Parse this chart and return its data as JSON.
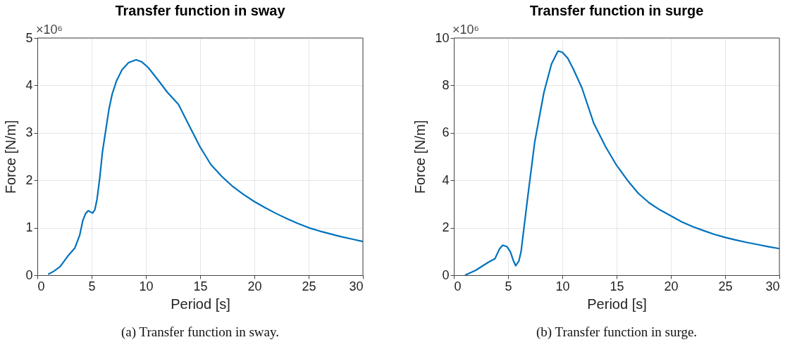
{
  "chart_data": [
    {
      "type": "line",
      "title": "Transfer function in sway",
      "xlabel": "Period [s]",
      "ylabel": "Force [N/m]",
      "xlim": [
        0,
        30
      ],
      "xticks": [
        0,
        5,
        10,
        15,
        20,
        25,
        30
      ],
      "ylim": [
        0,
        5
      ],
      "yticks": [
        0,
        1,
        2,
        3,
        4,
        5
      ],
      "grid": true,
      "annotations": [
        "×10⁶",
        "(a) Transfer function in sway."
      ],
      "series": [
        {
          "color": "#0072bd",
          "x": [
            1,
            1.5,
            2.1,
            2.8,
            3.45,
            3.9,
            4.2,
            4.45,
            4.7,
            4.9,
            5.1,
            5.3,
            5.5,
            5.75,
            6.0,
            6.3,
            6.6,
            6.9,
            7.3,
            7.8,
            8.4,
            9.1,
            9.6,
            10.2,
            11,
            12,
            13,
            14,
            15,
            16,
            17,
            18,
            19,
            20,
            21,
            22,
            23,
            24,
            25,
            26,
            27,
            28,
            29,
            30
          ],
          "values": [
            0.02,
            0.08,
            0.18,
            0.4,
            0.57,
            0.84,
            1.16,
            1.3,
            1.36,
            1.33,
            1.31,
            1.38,
            1.6,
            2.05,
            2.6,
            3.05,
            3.5,
            3.82,
            4.1,
            4.33,
            4.48,
            4.54,
            4.5,
            4.38,
            4.15,
            3.85,
            3.6,
            3.15,
            2.7,
            2.33,
            2.08,
            1.87,
            1.7,
            1.55,
            1.42,
            1.3,
            1.19,
            1.09,
            1.0,
            0.93,
            0.87,
            0.81,
            0.76,
            0.71
          ]
        }
      ]
    },
    {
      "type": "line",
      "title": "Transfer function in surge",
      "xlabel": "Period [s]",
      "ylabel": "Force [N/m]",
      "xlim": [
        0,
        30
      ],
      "xticks": [
        0,
        5,
        10,
        15,
        20,
        25,
        30
      ],
      "ylim": [
        0,
        10
      ],
      "yticks": [
        0,
        2,
        4,
        6,
        8,
        10
      ],
      "grid": true,
      "annotations": [
        "×10⁶",
        "(b) Transfer function in surge."
      ],
      "series": [
        {
          "color": "#0072bd",
          "x": [
            1.04,
            2.0,
            3.2,
            3.8,
            4.2,
            4.5,
            4.9,
            5.2,
            5.5,
            5.7,
            6.0,
            6.2,
            6.8,
            7.45,
            8.3,
            9.0,
            9.6,
            10.0,
            10.5,
            11,
            11.8,
            12.9,
            14,
            15,
            16,
            17,
            18,
            19,
            20,
            21,
            22,
            23,
            24,
            25,
            26,
            27,
            28,
            29,
            30
          ],
          "values": [
            0,
            0.2,
            0.55,
            0.7,
            1.1,
            1.26,
            1.2,
            1.0,
            0.6,
            0.4,
            0.6,
            1.0,
            3.25,
            5.6,
            7.7,
            8.9,
            9.45,
            9.4,
            9.15,
            8.7,
            7.9,
            6.4,
            5.4,
            4.63,
            4.0,
            3.45,
            3.05,
            2.75,
            2.5,
            2.25,
            2.05,
            1.88,
            1.72,
            1.59,
            1.48,
            1.38,
            1.29,
            1.2,
            1.12
          ]
        }
      ]
    }
  ]
}
